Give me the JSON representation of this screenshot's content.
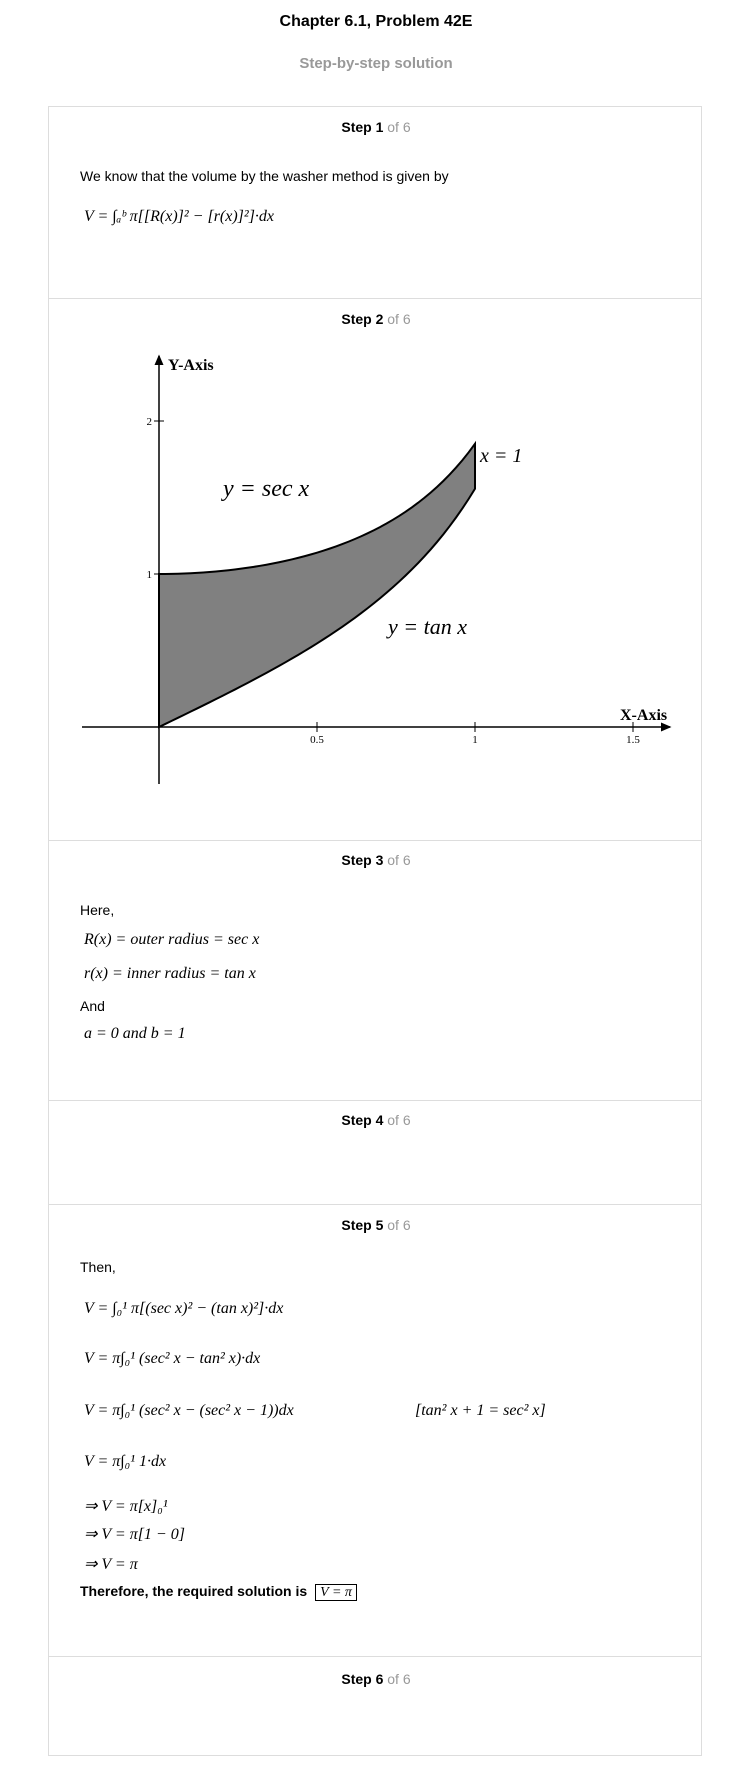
{
  "header": {
    "title": "Chapter 6.1, Problem 42E",
    "subtitle": "Step-by-step solution"
  },
  "steps": [
    {
      "label": "Step 1",
      "of": "of 6",
      "lines": [
        "We know that the volume by the washer method is given by",
        "V = ∫ₐᵇ π[[R(x)]² − [r(x)]²]·dx"
      ]
    },
    {
      "label": "Step 2",
      "of": "of 6",
      "figure": {
        "y_axis_label": "Y-Axis",
        "x_axis_label": "X-Axis",
        "xticks": [
          0.5,
          1,
          1.5
        ],
        "yticks": [
          1,
          2
        ],
        "curve_labels": [
          "y = sec x",
          "y = tan x",
          "x = 1"
        ]
      }
    },
    {
      "label": "Step 3",
      "of": "of 6",
      "lines": [
        "Here,",
        "R(x) = outer radius = sec x",
        "r(x) = inner radius = tan x",
        "And",
        "a = 0   and   b = 1"
      ]
    },
    {
      "label": "Step 4",
      "of": "of 6"
    },
    {
      "label": "Step 5",
      "of": "of 6",
      "lines": [
        "Then,",
        "V = ∫₀¹ π[(sec x)² − (tan x)²]·dx",
        "V = π∫₀¹ (sec² x − tan² x)·dx",
        "V = π∫₀¹ (sec² x − (sec² x − 1))dx",
        "V = π∫₀¹ 1·dx",
        "⇒ V = π[x]₀¹",
        "⇒ V = π[1 − 0]",
        "⇒ V = π"
      ],
      "note": "[tan² x + 1 = sec² x]",
      "conclusion": "Therefore, the required solution is",
      "answer": "V = π"
    },
    {
      "label": "Step 6",
      "of": "of 6"
    }
  ]
}
